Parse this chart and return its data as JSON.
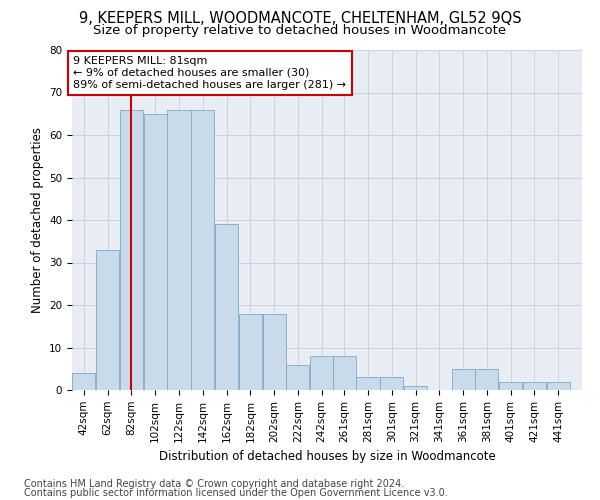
{
  "title": "9, KEEPERS MILL, WOODMANCOTE, CHELTENHAM, GL52 9QS",
  "subtitle": "Size of property relative to detached houses in Woodmancote",
  "xlabel": "Distribution of detached houses by size in Woodmancote",
  "ylabel": "Number of detached properties",
  "footer1": "Contains HM Land Registry data © Crown copyright and database right 2024.",
  "footer2": "Contains public sector information licensed under the Open Government Licence v3.0.",
  "bin_starts": [
    42,
    62,
    82,
    102,
    122,
    142,
    162,
    182,
    202,
    222,
    242,
    261,
    281,
    301,
    321,
    341,
    361,
    381,
    401,
    421,
    441
  ],
  "counts": [
    4,
    33,
    66,
    65,
    66,
    66,
    39,
    18,
    18,
    6,
    8,
    8,
    3,
    3,
    1,
    0,
    5,
    5,
    2,
    2,
    2
  ],
  "ylim": [
    0,
    80
  ],
  "yticks": [
    0,
    10,
    20,
    30,
    40,
    50,
    60,
    70,
    80
  ],
  "bar_color": "#c9daea",
  "bar_edge_color": "#7aaac8",
  "grid_color": "#c8d4e0",
  "bg_color": "#e8edf3",
  "property_line_color": "#cc0000",
  "property_line_x": 82,
  "annotation_text": "9 KEEPERS MILL: 81sqm\n← 9% of detached houses are smaller (30)\n89% of semi-detached houses are larger (281) →",
  "annotation_box_facecolor": "#ffffff",
  "annotation_box_edgecolor": "#cc0000",
  "title_fontsize": 10.5,
  "subtitle_fontsize": 9.5,
  "axis_label_fontsize": 8.5,
  "tick_fontsize": 7.5,
  "annotation_fontsize": 8,
  "footer_fontsize": 7
}
